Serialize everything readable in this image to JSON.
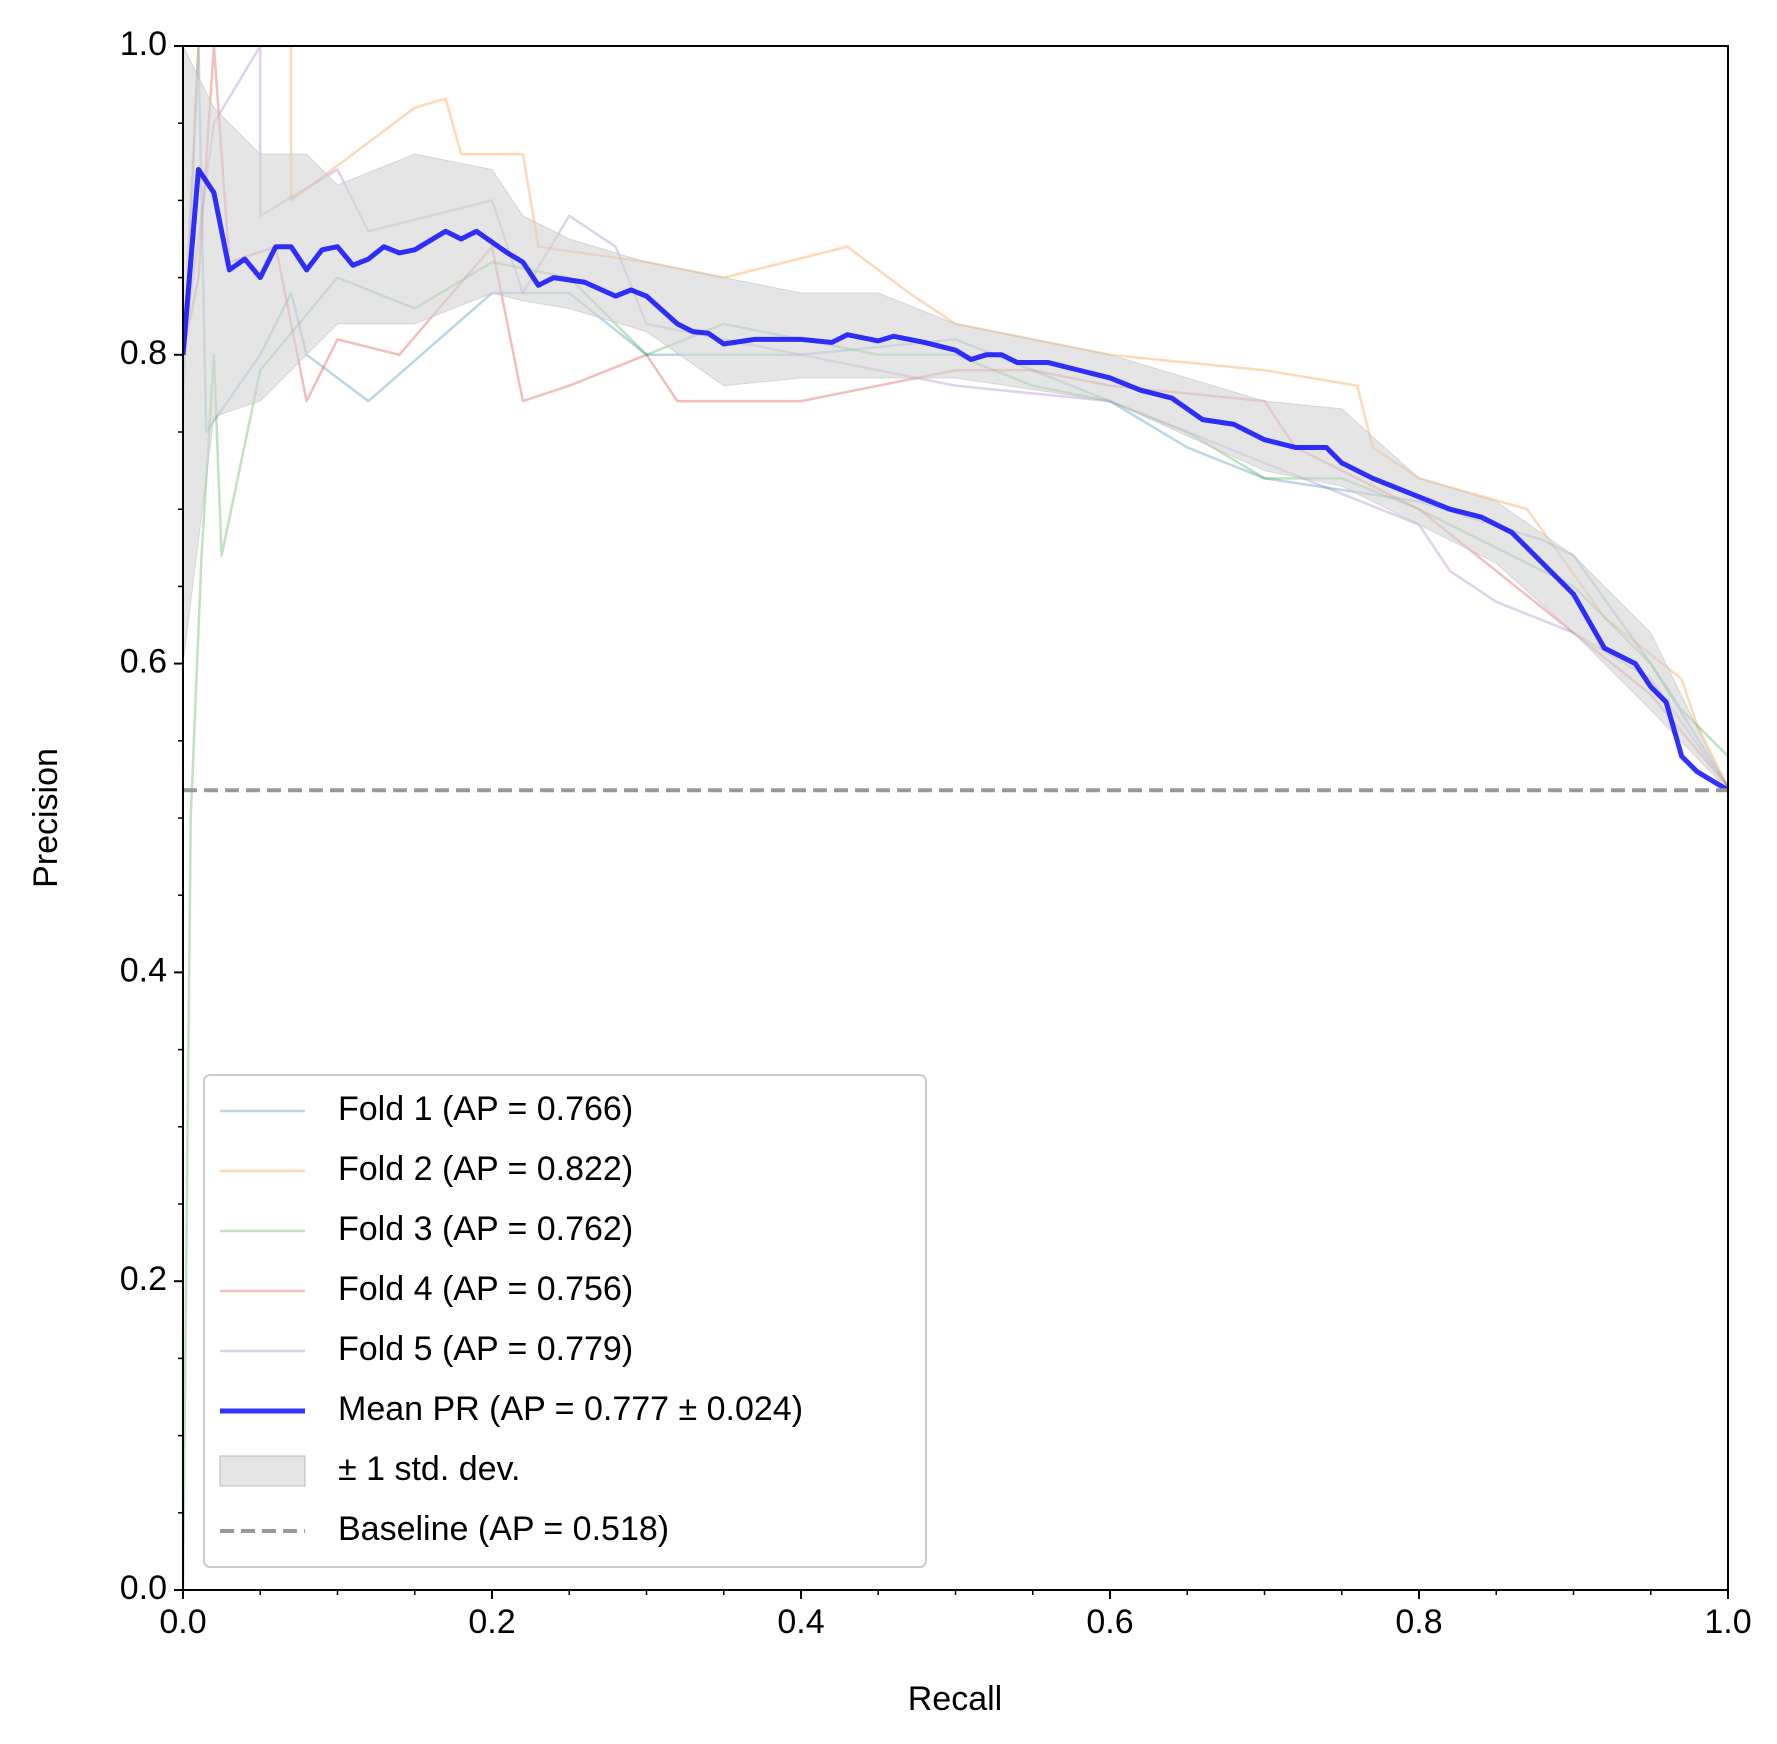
{
  "chart_data": {
    "type": "line",
    "xlabel": "Recall",
    "ylabel": "Precision",
    "xlim": [
      0,
      1
    ],
    "ylim": [
      0,
      1
    ],
    "xticks": [
      {
        "value": 0,
        "label": "0.0"
      },
      0.2,
      0.4,
      0.6,
      0.8,
      {
        "value": 1,
        "label": "1.0"
      }
    ],
    "yticks": [
      {
        "value": 0,
        "label": "0.0"
      },
      0.2,
      0.4,
      0.6,
      0.8,
      {
        "value": 1,
        "label": "1.0"
      }
    ],
    "xminorticks": [
      0.05,
      0.1,
      0.15,
      0.25,
      0.3,
      0.35,
      0.45,
      0.5,
      0.55,
      0.65,
      0.7,
      0.75,
      0.85,
      0.9,
      0.95
    ],
    "yminorticks": [
      0.05,
      0.1,
      0.15,
      0.25,
      0.3,
      0.35,
      0.45,
      0.5,
      0.55,
      0.65,
      0.7,
      0.75,
      0.85,
      0.9,
      0.95
    ],
    "legend": "lower left",
    "series": [
      {
        "name": "Fold 1 (AP = 0.766)",
        "color": "#1f77b4",
        "opacity": 0.3,
        "width": 2.5,
        "x": [
          0,
          0.01,
          0.015,
          0.05,
          0.07,
          0.08,
          0.12,
          0.2,
          0.25,
          0.3,
          0.4,
          0.5,
          0.55,
          0.6,
          0.65,
          0.7,
          0.8,
          0.88,
          0.9,
          0.95,
          1.0
        ],
        "values": [
          0.77,
          1.0,
          0.75,
          0.8,
          0.84,
          0.8,
          0.77,
          0.84,
          0.84,
          0.8,
          0.8,
          0.81,
          0.79,
          0.77,
          0.74,
          0.72,
          0.705,
          0.68,
          0.67,
          0.6,
          0.52
        ]
      },
      {
        "name": "Fold 2 (AP = 0.822)",
        "color": "#ff7f0e",
        "opacity": 0.3,
        "width": 2.5,
        "x": [
          0,
          0.01,
          0.07,
          0.07,
          0.15,
          0.17,
          0.18,
          0.22,
          0.23,
          0.3,
          0.35,
          0.43,
          0.47,
          0.5,
          0.55,
          0.6,
          0.7,
          0.76,
          0.77,
          0.8,
          0.87,
          0.92,
          0.97,
          0.98,
          1.0
        ],
        "values": [
          0.8,
          1.0,
          1.0,
          0.9,
          0.96,
          0.966,
          0.93,
          0.93,
          0.87,
          0.86,
          0.85,
          0.87,
          0.84,
          0.82,
          0.81,
          0.8,
          0.79,
          0.78,
          0.74,
          0.72,
          0.7,
          0.63,
          0.59,
          0.56,
          0.52
        ]
      },
      {
        "name": "Fold 3 (AP = 0.762)",
        "color": "#2ca02c",
        "opacity": 0.3,
        "width": 2.5,
        "x": [
          0,
          0.005,
          0.012,
          0.02,
          0.025,
          0.05,
          0.1,
          0.15,
          0.2,
          0.25,
          0.3,
          0.35,
          0.45,
          0.5,
          0.55,
          0.6,
          0.65,
          0.7,
          0.75,
          0.8,
          0.9,
          0.95,
          0.97,
          1.0
        ],
        "values": [
          0.0,
          0.5,
          0.67,
          0.8,
          0.67,
          0.79,
          0.85,
          0.83,
          0.86,
          0.85,
          0.8,
          0.82,
          0.8,
          0.8,
          0.78,
          0.77,
          0.75,
          0.72,
          0.72,
          0.7,
          0.65,
          0.6,
          0.57,
          0.54
        ]
      },
      {
        "name": "Fold 4 (AP = 0.756)",
        "color": "#d62728",
        "opacity": 0.3,
        "width": 2.5,
        "x": [
          0,
          0.01,
          0.02,
          0.03,
          0.06,
          0.08,
          0.1,
          0.14,
          0.2,
          0.22,
          0.25,
          0.3,
          0.32,
          0.4,
          0.45,
          0.5,
          0.55,
          0.6,
          0.7,
          0.72,
          0.8,
          0.9,
          0.95,
          1.0
        ],
        "values": [
          0.8,
          0.85,
          1.0,
          0.86,
          0.87,
          0.77,
          0.81,
          0.8,
          0.87,
          0.77,
          0.78,
          0.8,
          0.77,
          0.77,
          0.78,
          0.79,
          0.79,
          0.78,
          0.77,
          0.74,
          0.7,
          0.62,
          0.58,
          0.52
        ]
      },
      {
        "name": "Fold 5 (AP = 0.779)",
        "color": "#9467bd",
        "opacity": 0.3,
        "width": 2.5,
        "x": [
          0,
          0.02,
          0.05,
          0.05,
          0.1,
          0.12,
          0.2,
          0.22,
          0.25,
          0.28,
          0.3,
          0.4,
          0.45,
          0.5,
          0.6,
          0.7,
          0.8,
          0.82,
          0.85,
          0.9,
          0.95,
          1.0
        ],
        "values": [
          0.8,
          0.95,
          1.0,
          0.89,
          0.92,
          0.88,
          0.9,
          0.84,
          0.89,
          0.87,
          0.82,
          0.8,
          0.79,
          0.78,
          0.77,
          0.73,
          0.69,
          0.66,
          0.64,
          0.62,
          0.59,
          0.52
        ]
      },
      {
        "name": "Mean PR (AP = 0.777 ± 0.024)",
        "color": "#0000ff",
        "opacity": 0.8,
        "width": 5,
        "x": [
          0,
          0.01,
          0.02,
          0.03,
          0.04,
          0.05,
          0.06,
          0.07,
          0.08,
          0.09,
          0.1,
          0.11,
          0.12,
          0.13,
          0.14,
          0.15,
          0.17,
          0.18,
          0.19,
          0.21,
          0.22,
          0.23,
          0.24,
          0.26,
          0.28,
          0.29,
          0.3,
          0.32,
          0.33,
          0.34,
          0.35,
          0.37,
          0.4,
          0.42,
          0.43,
          0.45,
          0.46,
          0.48,
          0.5,
          0.51,
          0.52,
          0.53,
          0.54,
          0.56,
          0.58,
          0.6,
          0.62,
          0.64,
          0.66,
          0.68,
          0.7,
          0.72,
          0.74,
          0.75,
          0.77,
          0.79,
          0.82,
          0.84,
          0.86,
          0.88,
          0.9,
          0.92,
          0.94,
          0.95,
          0.96,
          0.97,
          0.98,
          1.0
        ],
        "values": [
          0.8,
          0.92,
          0.905,
          0.855,
          0.862,
          0.85,
          0.87,
          0.87,
          0.855,
          0.868,
          0.87,
          0.858,
          0.862,
          0.87,
          0.866,
          0.868,
          0.88,
          0.875,
          0.88,
          0.866,
          0.86,
          0.845,
          0.85,
          0.847,
          0.838,
          0.842,
          0.838,
          0.82,
          0.815,
          0.814,
          0.807,
          0.81,
          0.81,
          0.808,
          0.813,
          0.809,
          0.812,
          0.808,
          0.803,
          0.797,
          0.8,
          0.8,
          0.795,
          0.795,
          0.79,
          0.785,
          0.777,
          0.772,
          0.758,
          0.755,
          0.745,
          0.74,
          0.74,
          0.73,
          0.72,
          0.712,
          0.7,
          0.695,
          0.685,
          0.665,
          0.645,
          0.61,
          0.6,
          0.585,
          0.575,
          0.54,
          0.53,
          0.518
        ]
      }
    ],
    "band": {
      "name": "± 1 std. dev.",
      "color": "#d3d3d3",
      "opacity": 0.6,
      "x": [
        0,
        0.02,
        0.05,
        0.08,
        0.1,
        0.15,
        0.2,
        0.22,
        0.25,
        0.3,
        0.35,
        0.4,
        0.45,
        0.5,
        0.6,
        0.7,
        0.75,
        0.8,
        0.85,
        0.9,
        0.95,
        1.0
      ],
      "upper": [
        1.0,
        0.96,
        0.93,
        0.93,
        0.91,
        0.93,
        0.92,
        0.89,
        0.875,
        0.86,
        0.85,
        0.84,
        0.84,
        0.82,
        0.8,
        0.77,
        0.765,
        0.72,
        0.705,
        0.67,
        0.62,
        0.518
      ],
      "lower": [
        0.6,
        0.76,
        0.77,
        0.8,
        0.82,
        0.82,
        0.84,
        0.835,
        0.83,
        0.815,
        0.78,
        0.785,
        0.785,
        0.785,
        0.77,
        0.725,
        0.715,
        0.69,
        0.665,
        0.62,
        0.57,
        0.518
      ]
    },
    "baseline": {
      "name": "Baseline (AP = 0.518)",
      "value": 0.518,
      "color": "#999999",
      "width": 4,
      "dashed": true
    }
  }
}
